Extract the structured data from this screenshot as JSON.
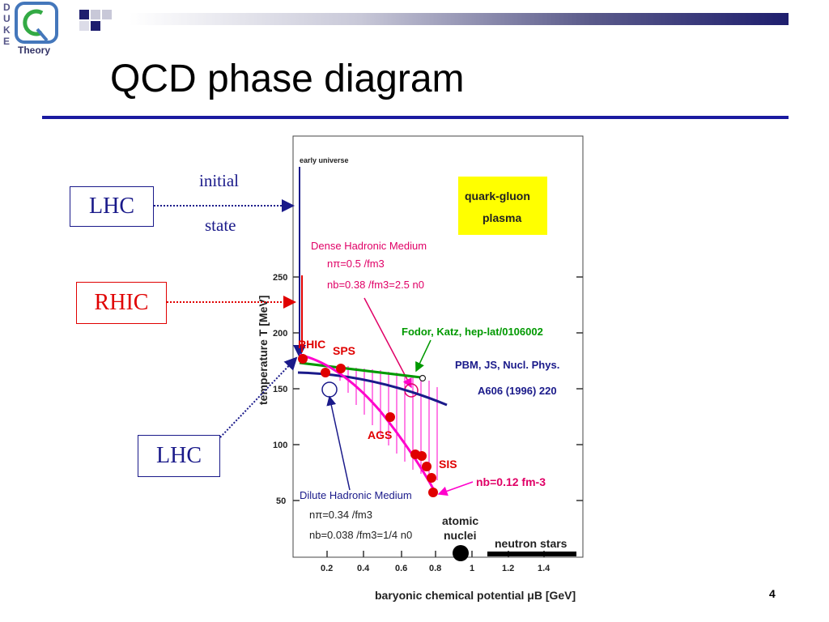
{
  "slide": {
    "title": "QCD phase diagram",
    "page_number": "4",
    "logo_letters": [
      "D",
      "U",
      "K",
      "E"
    ],
    "logo_text": "Theory"
  },
  "callouts": {
    "lhc_top": "LHC",
    "rhic": "RHIC",
    "lhc_bottom": "LHC",
    "initial": "initial",
    "state": "state"
  },
  "diagram": {
    "early_universe": "early universe",
    "qgp_line1": "quark-gluon",
    "qgp_line2": "plasma",
    "dense_title": "Dense Hadronic Medium",
    "dense_line1": "nπ=0.5 /fm3",
    "dense_line2": "nb=0.38 /fm3=2.5 n0",
    "fodor": "Fodor, Katz, hep-lat/0106002",
    "pbm1": "PBM, JS, Nucl. Phys.",
    "pbm2": "A606 (1996) 220",
    "rhic_label": "RHIC",
    "sps_label": "SPS",
    "ags_label": "AGS",
    "sis_label": "SIS",
    "nb_label": "nb=0.12 fm-3",
    "dilute_title": "Dilute Hadronic Medium",
    "dilute_line1": "nπ=0.34 /fm3",
    "dilute_line2": "nb=0.038 /fm3=1/4 n0",
    "atomic1": "atomic",
    "atomic2": "nuclei",
    "neutron": "neutron stars",
    "ylabel": "temperature T [MeV]",
    "xlabel": "baryonic chemical potential μB [GeV]",
    "yticks": [
      "250",
      "200",
      "150",
      "100",
      "50"
    ],
    "xticks": [
      "0.2",
      "0.4",
      "0.6",
      "0.8",
      "1",
      "1.2",
      "1.4"
    ]
  },
  "colors": {
    "navy": "#1a1a8a",
    "red": "#e00000",
    "magenta": "#ff00cc",
    "green": "#009900",
    "yellow": "#ffff00",
    "title_rule": "#1a1aa0"
  }
}
